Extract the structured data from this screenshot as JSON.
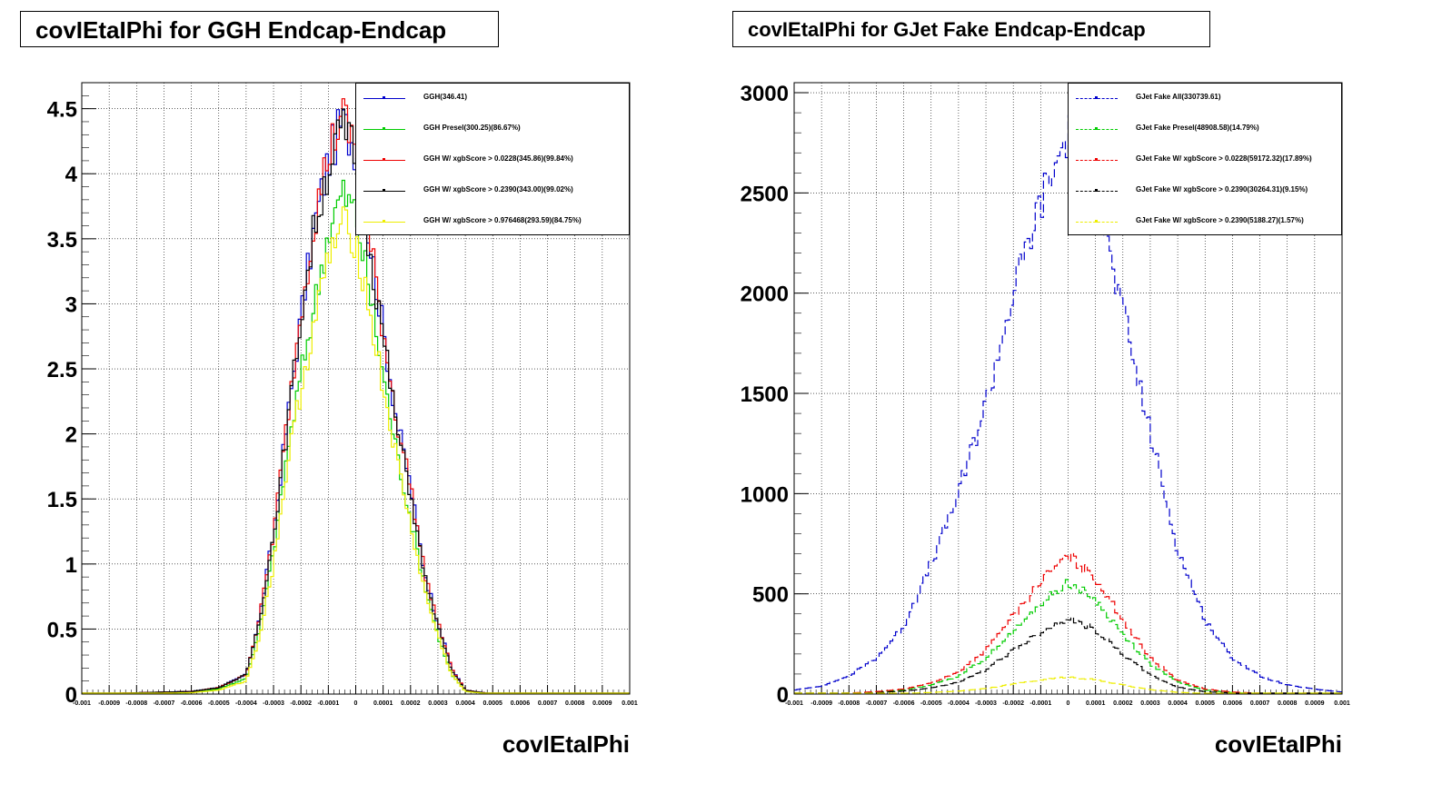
{
  "chart_data": [
    {
      "type": "line",
      "title": "covIEtaIPhi for GGH Endcap-Endcap",
      "xlabel": "covIEtaIPhi",
      "ylabel": "",
      "xlim": [
        -0.001,
        0.001
      ],
      "ylim": [
        0,
        4.7
      ],
      "grid": true,
      "legend_position": "top-right",
      "x_ticks": [
        "-0.001",
        "-0.0009",
        "-0.0008",
        "-0.0007",
        "-0.0006",
        "-0.0005",
        "-0.0004",
        "-0.0003",
        "-0.0002",
        "-0.0001",
        "0",
        "0.0001",
        "0.0002",
        "0.0003",
        "0.0004",
        "0.0005",
        "0.0006",
        "0.0007",
        "0.0008",
        "0.0009",
        "0.001"
      ],
      "y_ticks": [
        "0",
        "0.5",
        "1",
        "1.5",
        "2",
        "2.5",
        "3",
        "3.5",
        "4",
        "4.5"
      ],
      "y_tick_values": [
        0,
        0.5,
        1,
        1.5,
        2,
        2.5,
        3,
        3.5,
        4,
        4.5
      ],
      "x": [
        -0.001,
        -0.0006,
        -0.0005,
        -0.0004,
        -0.00035,
        -0.0003,
        -0.00025,
        -0.0002,
        -0.00015,
        -0.0001,
        -5e-05,
        0.0,
        5e-05,
        0.0001,
        0.00015,
        0.0002,
        0.00025,
        0.0003,
        0.00035,
        0.0004,
        0.0005,
        0.001
      ],
      "series": [
        {
          "name": "GGH(346.41)",
          "color": "#0000cc",
          "dashed": false,
          "values": [
            0,
            0.02,
            0.05,
            0.15,
            0.6,
            1.25,
            2.1,
            2.9,
            3.6,
            4.1,
            4.4,
            4.2,
            3.5,
            2.8,
            2.1,
            1.6,
            0.95,
            0.55,
            0.2,
            0.03,
            0,
            0
          ]
        },
        {
          "name": "GGH Presel(300.25)(86.67%)",
          "color": "#00cc00",
          "dashed": false,
          "values": [
            0,
            0.01,
            0.04,
            0.12,
            0.5,
            1.1,
            1.85,
            2.45,
            3.0,
            3.55,
            3.85,
            3.7,
            3.1,
            2.45,
            1.85,
            1.35,
            0.85,
            0.45,
            0.15,
            0.02,
            0,
            0
          ]
        },
        {
          "name": "GGH W/ xgbScore > 0.0228(345.86)(99.84%)",
          "color": "#ee0000",
          "dashed": false,
          "values": [
            0,
            0.02,
            0.05,
            0.15,
            0.6,
            1.25,
            2.1,
            2.95,
            3.65,
            4.15,
            4.45,
            4.2,
            3.5,
            2.8,
            2.1,
            1.6,
            0.95,
            0.55,
            0.2,
            0.03,
            0,
            0
          ]
        },
        {
          "name": "GGH W/ xgbScore > 0.2390(343.00)(99.02%)",
          "color": "#000000",
          "dashed": false,
          "values": [
            0,
            0.02,
            0.05,
            0.15,
            0.58,
            1.22,
            2.05,
            2.9,
            3.6,
            4.05,
            4.35,
            4.15,
            3.45,
            2.75,
            2.05,
            1.55,
            0.92,
            0.52,
            0.18,
            0.03,
            0,
            0
          ]
        },
        {
          "name": "GGH W/ xgbScore > 0.976468(293.59)(84.75%)",
          "color": "#eeee00",
          "dashed": false,
          "values": [
            0,
            0.01,
            0.03,
            0.1,
            0.45,
            1.0,
            1.75,
            2.35,
            2.85,
            3.35,
            3.6,
            3.5,
            2.95,
            2.35,
            1.8,
            1.3,
            0.8,
            0.45,
            0.15,
            0.02,
            0,
            0
          ]
        }
      ]
    },
    {
      "type": "line",
      "title": "covIEtaIPhi for GJet Fake Endcap-Endcap",
      "xlabel": "covIEtaIPhi",
      "ylabel": "",
      "xlim": [
        -0.001,
        0.001
      ],
      "ylim": [
        0,
        3050
      ],
      "grid": true,
      "legend_position": "top-right",
      "x_ticks": [
        "-0.001",
        "-0.0009",
        "-0.0008",
        "-0.0007",
        "-0.0006",
        "-0.0005",
        "-0.0004",
        "-0.0003",
        "-0.0002",
        "-0.0001",
        "0",
        "0.0001",
        "0.0002",
        "0.0003",
        "0.0004",
        "0.0005",
        "0.0006",
        "0.0007",
        "0.0008",
        "0.0009",
        "0.001"
      ],
      "y_ticks": [
        "0",
        "500",
        "1000",
        "1500",
        "2000",
        "2500",
        "3000"
      ],
      "y_tick_values": [
        0,
        500,
        1000,
        1500,
        2000,
        2500,
        3000
      ],
      "x": [
        -0.001,
        -0.0009,
        -0.0008,
        -0.0007,
        -0.0006,
        -0.0005,
        -0.0004,
        -0.0003,
        -0.0002,
        -0.0001,
        0.0,
        0.0001,
        0.0002,
        0.0003,
        0.0004,
        0.0005,
        0.0006,
        0.0007,
        0.0008,
        0.0009,
        0.001
      ],
      "series": [
        {
          "name": "GJet Fake All(330739.61)",
          "color": "#0000cc",
          "dashed": true,
          "values": [
            20,
            40,
            90,
            180,
            340,
            650,
            1000,
            1450,
            2000,
            2450,
            2800,
            2500,
            1900,
            1300,
            720,
            370,
            180,
            90,
            45,
            25,
            10
          ]
        },
        {
          "name": "GJet Fake Presel(48908.58)(14.79%)",
          "color": "#00cc00",
          "dashed": true,
          "values": [
            0,
            2,
            5,
            10,
            20,
            45,
            90,
            180,
            310,
            450,
            560,
            470,
            300,
            150,
            60,
            20,
            8,
            3,
            1,
            0,
            0
          ]
        },
        {
          "name": "GJet Fake W/ xgbScore > 0.0228(59172.32)(17.89%)",
          "color": "#ee0000",
          "dashed": true,
          "values": [
            0,
            2,
            5,
            12,
            25,
            55,
            110,
            220,
            390,
            560,
            690,
            580,
            370,
            180,
            70,
            25,
            10,
            4,
            1,
            0,
            0
          ]
        },
        {
          "name": "GJet Fake W/ xgbScore > 0.2390(30264.31)(9.15%)",
          "color": "#000000",
          "dashed": true,
          "values": [
            0,
            1,
            3,
            7,
            15,
            30,
            60,
            120,
            220,
            310,
            380,
            320,
            200,
            95,
            35,
            12,
            5,
            2,
            1,
            0,
            0
          ]
        },
        {
          "name": "GJet Fake W/ xgbScore > 0.2390(5188.27)(1.57%)",
          "color": "#eeee00",
          "dashed": true,
          "values": [
            0,
            0,
            1,
            2,
            4,
            8,
            15,
            28,
            50,
            70,
            85,
            72,
            45,
            22,
            9,
            3,
            1,
            0,
            0,
            0,
            0
          ]
        }
      ]
    }
  ]
}
